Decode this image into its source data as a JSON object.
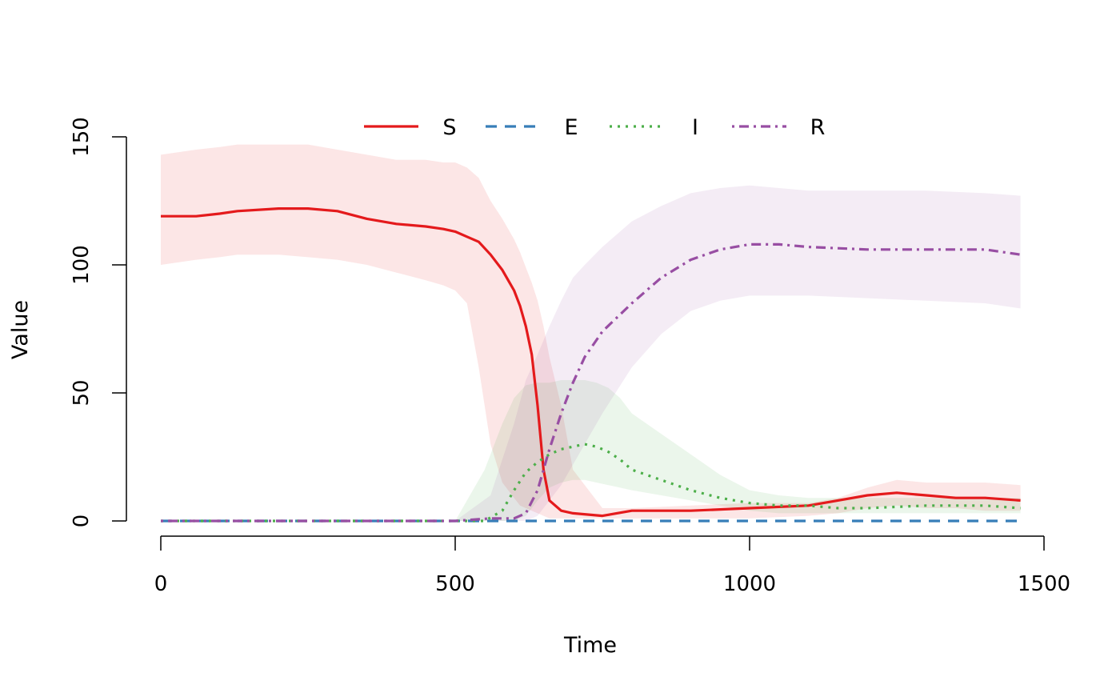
{
  "chart_data": {
    "type": "line",
    "xlabel": "Time",
    "ylabel": "Value",
    "xlim": [
      0,
      1500
    ],
    "ylim": [
      0,
      150
    ],
    "x_ticks": [
      0,
      500,
      1000,
      1500
    ],
    "y_ticks": [
      0,
      50,
      100,
      150
    ],
    "legend_position": "top",
    "grid": false,
    "series": [
      {
        "name": "S",
        "color": "#E41A1C",
        "dash": "solid",
        "x": [
          0,
          60,
          100,
          130,
          200,
          250,
          300,
          350,
          400,
          450,
          480,
          500,
          520,
          540,
          560,
          580,
          600,
          610,
          620,
          630,
          640,
          650,
          660,
          680,
          700,
          750,
          800,
          900,
          1000,
          1100,
          1150,
          1200,
          1250,
          1300,
          1350,
          1400,
          1460
        ],
        "y": [
          119,
          119,
          120,
          121,
          122,
          122,
          121,
          118,
          116,
          115,
          114,
          113,
          111,
          109,
          104,
          98,
          90,
          84,
          76,
          65,
          45,
          20,
          8,
          4,
          3,
          2,
          4,
          4,
          5,
          6,
          8,
          10,
          11,
          10,
          9,
          9,
          8
        ],
        "lower": [
          100,
          102,
          103,
          104,
          104,
          103,
          102,
          100,
          97,
          94,
          92,
          90,
          85,
          60,
          30,
          15,
          9,
          6,
          5,
          4,
          3,
          2,
          1,
          1,
          1,
          1,
          1,
          1,
          1,
          2,
          3,
          5,
          6,
          5,
          5,
          4,
          4
        ],
        "upper": [
          143,
          145,
          146,
          147,
          147,
          147,
          145,
          143,
          141,
          141,
          140,
          140,
          138,
          134,
          125,
          118,
          110,
          105,
          99,
          93,
          86,
          76,
          64,
          45,
          20,
          5,
          5,
          6,
          7,
          7,
          9,
          13,
          16,
          15,
          15,
          15,
          14
        ]
      },
      {
        "name": "E",
        "color": "#377EB8",
        "dash": "dashed",
        "x": [
          0,
          1460
        ],
        "y": [
          0,
          0
        ],
        "lower": [
          0,
          0
        ],
        "upper": [
          0,
          0
        ]
      },
      {
        "name": "I",
        "color": "#4DAF4A",
        "dash": "dotted",
        "x": [
          0,
          500,
          550,
          580,
          600,
          620,
          640,
          660,
          680,
          700,
          720,
          740,
          760,
          780,
          800,
          850,
          900,
          950,
          1000,
          1050,
          1100,
          1150,
          1200,
          1300,
          1400,
          1460
        ],
        "y": [
          0,
          0,
          0,
          4,
          12,
          19,
          23,
          26,
          28,
          29,
          30,
          29,
          27,
          24,
          20,
          16,
          12,
          9,
          7,
          6,
          6,
          5,
          5,
          6,
          6,
          5
        ],
        "lower": [
          0,
          0,
          0,
          0,
          0,
          2,
          8,
          13,
          15,
          16,
          16,
          15,
          14,
          13,
          12,
          10,
          8,
          6,
          4,
          3,
          3,
          3,
          3,
          3,
          3,
          3
        ],
        "upper": [
          0,
          0,
          20,
          38,
          48,
          53,
          54,
          54,
          55,
          55,
          55,
          54,
          52,
          48,
          42,
          34,
          26,
          18,
          12,
          10,
          9,
          9,
          9,
          9,
          9,
          9
        ]
      },
      {
        "name": "R",
        "color": "#984EA3",
        "dash": "dotdash",
        "x": [
          0,
          500,
          560,
          600,
          620,
          640,
          660,
          680,
          700,
          720,
          750,
          800,
          850,
          900,
          950,
          1000,
          1050,
          1100,
          1200,
          1300,
          1400,
          1460
        ],
        "y": [
          0,
          0,
          1,
          1,
          3,
          12,
          28,
          42,
          54,
          64,
          74,
          85,
          95,
          102,
          106,
          108,
          108,
          107,
          106,
          106,
          106,
          104
        ],
        "lower": [
          0,
          0,
          0,
          0,
          0,
          2,
          8,
          14,
          22,
          30,
          42,
          60,
          73,
          82,
          86,
          88,
          88,
          88,
          87,
          86,
          85,
          83
        ],
        "upper": [
          0,
          0,
          10,
          38,
          55,
          65,
          76,
          86,
          95,
          100,
          107,
          117,
          123,
          128,
          130,
          131,
          130,
          129,
          129,
          129,
          128,
          127
        ]
      }
    ]
  }
}
